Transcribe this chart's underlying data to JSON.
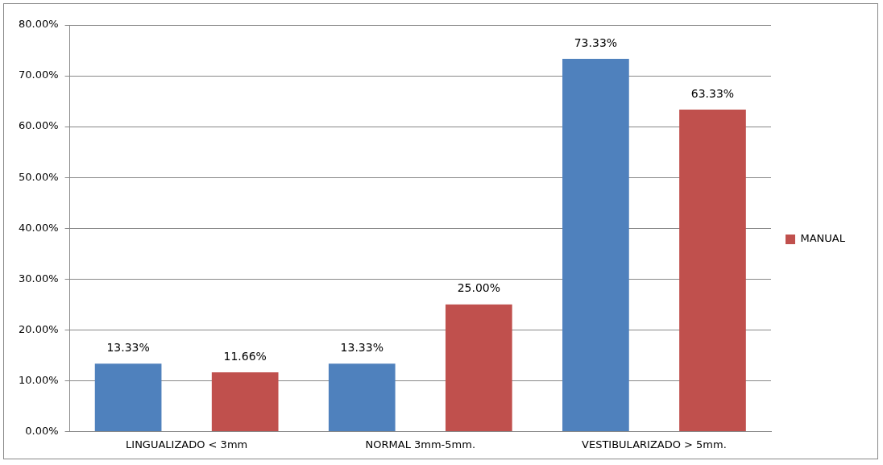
{
  "chart_data": {
    "type": "bar",
    "categories": [
      "LINGUALIZADO < 3mm",
      "NORMAL 3mm-5mm.",
      "VESTIBULARIZADO > 5mm."
    ],
    "series": [
      {
        "color": "#4f81bd",
        "values": [
          13.33,
          13.33,
          73.33
        ],
        "value_labels": [
          "13.33%",
          "13.33%",
          "73.33%"
        ]
      },
      {
        "name": "MANUAL",
        "color": "#c0504d",
        "values": [
          11.66,
          25.0,
          63.33
        ],
        "value_labels": [
          "11.66%",
          "25.00%",
          "63.33%"
        ]
      }
    ],
    "ylim": [
      0,
      80
    ],
    "yticks": [
      {
        "value": 0,
        "label": "0.00%"
      },
      {
        "value": 10,
        "label": "10.00%"
      },
      {
        "value": 20,
        "label": "20.00%"
      },
      {
        "value": 30,
        "label": "30.00%"
      },
      {
        "value": 40,
        "label": "40.00%"
      },
      {
        "value": 50,
        "label": "50.00%"
      },
      {
        "value": 60,
        "label": "60.00%"
      },
      {
        "value": 70,
        "label": "70.00%"
      },
      {
        "value": 80,
        "label": "80.00%"
      }
    ],
    "grid": "y",
    "legend": "right"
  }
}
